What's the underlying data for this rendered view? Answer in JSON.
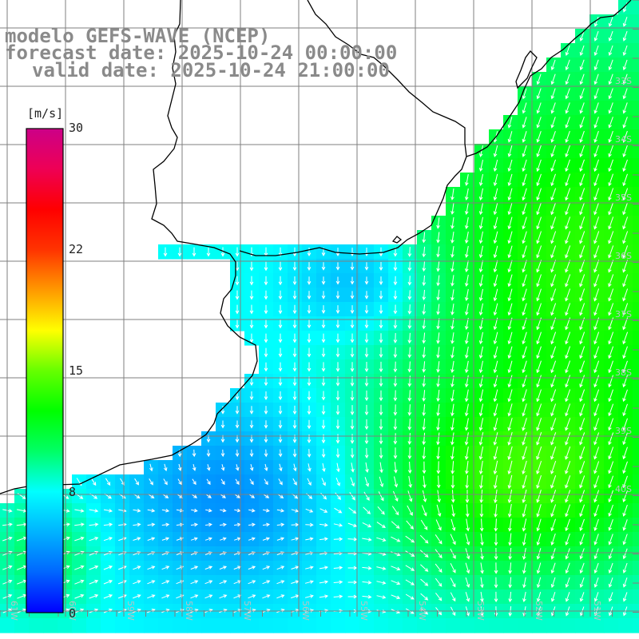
{
  "title": {
    "line1": "modelo GEFS-WAVE (NCEP)",
    "line2": "forecast date: 2025-10-24 00:00:00",
    "line3": "valid date: 2025-10-24 21:00:00"
  },
  "colorbar": {
    "unit": "[m/s]",
    "ticks": [
      "30",
      "22",
      "15",
      "8",
      "0"
    ],
    "tick_values": [
      30,
      22,
      15,
      8,
      0
    ],
    "range": [
      0,
      30
    ],
    "stops": [
      "#0000ff",
      "#0066ff",
      "#00b4ff",
      "#00ffff",
      "#00ff66",
      "#00ff00",
      "#66ff00",
      "#ffff00",
      "#ff9900",
      "#ff3300",
      "#ff0000",
      "#ee0055",
      "#cc0088"
    ]
  },
  "map": {
    "field": "wind speed (m/s) with direction arrows",
    "lat_labels": [
      "33S",
      "34S",
      "35S",
      "36S",
      "37S",
      "38S",
      "39S",
      "40S"
    ],
    "lon_labels": [
      "61W",
      "60W",
      "59W",
      "58W",
      "57W",
      "56W",
      "55W",
      "54W",
      "53W",
      "52W",
      "51W"
    ],
    "land_color": "#ffffff",
    "grid_color": "#7f7f7f",
    "coast_color": "#000000",
    "arrow_color": "#ffffff",
    "sample_speeds_ms": {
      "north_east_open_ocean": 13,
      "la_plata_estuary": 5,
      "south_west_coastal": 5,
      "south_east": 12
    }
  }
}
